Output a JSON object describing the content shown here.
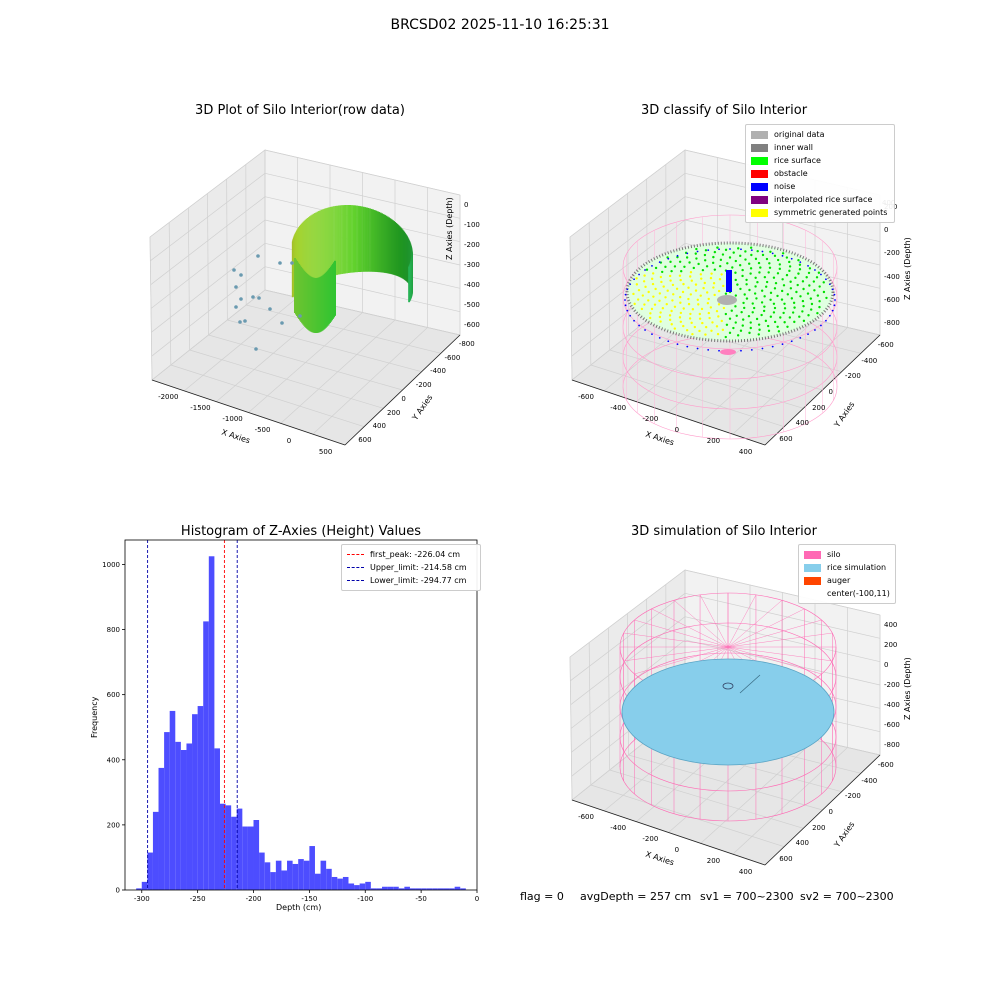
{
  "suptitle": "BRCSD02 2025-11-10 16:25:31",
  "footer": {
    "flag": "flag = 0",
    "avg": "avgDepth = 257 cm",
    "sv1": "sv1 = 700~2300",
    "sv2": "sv2 = 700~2300"
  },
  "colors": {
    "histogram": "#4d4dff",
    "first_peak": "#ff0000",
    "limits": "#0000aa",
    "silo": "#ff69b4",
    "rice_sim": "#87ceeb",
    "auger": "#ff4500"
  },
  "chart_data": [
    {
      "type": "scatter",
      "view": "3d",
      "title": "3D Plot of Silo Interior(row data)",
      "xlabel": "X Axies",
      "ylabel": "Y Axies",
      "zlabel": "Z Axies (Depth)",
      "x_ticks": [
        "-2000",
        "-1500",
        "-1000",
        "-500",
        "0",
        "500"
      ],
      "y_ticks": [
        "-800",
        "-600",
        "-400",
        "-200",
        "0",
        "200",
        "400",
        "600"
      ],
      "z_ticks": [
        "0",
        "-100",
        "-200",
        "-300",
        "-400",
        "-500",
        "-600"
      ],
      "colormap": "viridis"
    },
    {
      "type": "scatter",
      "view": "3d",
      "title": "3D classify of Silo Interior",
      "xlabel": "X Axies",
      "ylabel": "Y Axies",
      "zlabel": "Z Axies (Depth)",
      "x_ticks": [
        "-600",
        "-400",
        "-200",
        "0",
        "200",
        "400"
      ],
      "y_ticks": [
        "-600",
        "-400",
        "-200",
        "0",
        "200",
        "400",
        "600"
      ],
      "z_ticks": [
        "200",
        "0",
        "-200",
        "-400",
        "-600",
        "-800"
      ],
      "z_ticks_top": "400",
      "legend": [
        {
          "label": "original data",
          "color": "#b0b0b0"
        },
        {
          "label": "inner wall",
          "color": "#808080"
        },
        {
          "label": "rice surface",
          "color": "#00ff00"
        },
        {
          "label": "obstacle",
          "color": "#ff0000"
        },
        {
          "label": "noise",
          "color": "#0000ff"
        },
        {
          "label": "interpolated rice surface",
          "color": "#800080"
        },
        {
          "label": "symmetric generated points",
          "color": "#ffff00"
        }
      ]
    },
    {
      "type": "bar",
      "title": "Histogram of Z-Axies (Height) Values",
      "xlabel": "Depth (cm)",
      "ylabel": "Frequency",
      "xlim": [
        -315,
        0
      ],
      "ylim": [
        0,
        1075
      ],
      "bin_width": 5,
      "x_ticks": [
        -300,
        -250,
        -200,
        -150,
        -100,
        -50,
        0
      ],
      "y_ticks": [
        0,
        200,
        400,
        600,
        800,
        1000
      ],
      "bin_starts": [
        -305,
        -300,
        -295,
        -290,
        -285,
        -280,
        -275,
        -270,
        -265,
        -260,
        -255,
        -250,
        -245,
        -240,
        -235,
        -230,
        -225,
        -220,
        -215,
        -210,
        -205,
        -200,
        -195,
        -190,
        -185,
        -180,
        -175,
        -170,
        -165,
        -160,
        -155,
        -150,
        -145,
        -140,
        -135,
        -130,
        -125,
        -120,
        -115,
        -110,
        -105,
        -100,
        -95,
        -90,
        -85,
        -80,
        -75,
        -70,
        -65,
        -60,
        -55,
        -50,
        -45,
        -40,
        -35,
        -30,
        -25,
        -20,
        -15
      ],
      "values": [
        5,
        25,
        115,
        240,
        375,
        485,
        550,
        455,
        430,
        450,
        540,
        565,
        825,
        1025,
        435,
        265,
        260,
        225,
        250,
        195,
        195,
        215,
        115,
        85,
        55,
        90,
        60,
        90,
        80,
        95,
        90,
        135,
        50,
        90,
        65,
        40,
        35,
        40,
        20,
        15,
        20,
        25,
        5,
        5,
        10,
        10,
        10,
        5,
        10,
        5,
        5,
        5,
        5,
        5,
        5,
        5,
        5,
        10,
        5
      ],
      "legend": [
        {
          "label": "first_peak: -226.04 cm",
          "value": -226.04,
          "color": "#ff0000"
        },
        {
          "label": "Upper_limit: -214.58 cm",
          "value": -214.58,
          "color": "#0000aa"
        },
        {
          "label": "Lower_limit: -294.77 cm",
          "value": -294.77,
          "color": "#0000aa"
        }
      ]
    },
    {
      "type": "scatter",
      "view": "3d",
      "title": "3D simulation of Silo Interior",
      "xlabel": "X Axies",
      "ylabel": "Y Axies",
      "zlabel": "Z Axies (Depth)",
      "x_ticks": [
        "-600",
        "-400",
        "-200",
        "0",
        "200",
        "400"
      ],
      "y_ticks": [
        "-600",
        "-400",
        "-200",
        "0",
        "200",
        "400",
        "600"
      ],
      "z_ticks": [
        "400",
        "200",
        "0",
        "-200",
        "-400",
        "-600",
        "-800"
      ],
      "legend": [
        {
          "label": "silo",
          "color": "#ff69b4"
        },
        {
          "label": "rice simulation",
          "color": "#87ceeb"
        },
        {
          "label": "auger",
          "color": "#ff4500"
        },
        {
          "label": "center(-100,11)",
          "color": ""
        }
      ]
    }
  ]
}
